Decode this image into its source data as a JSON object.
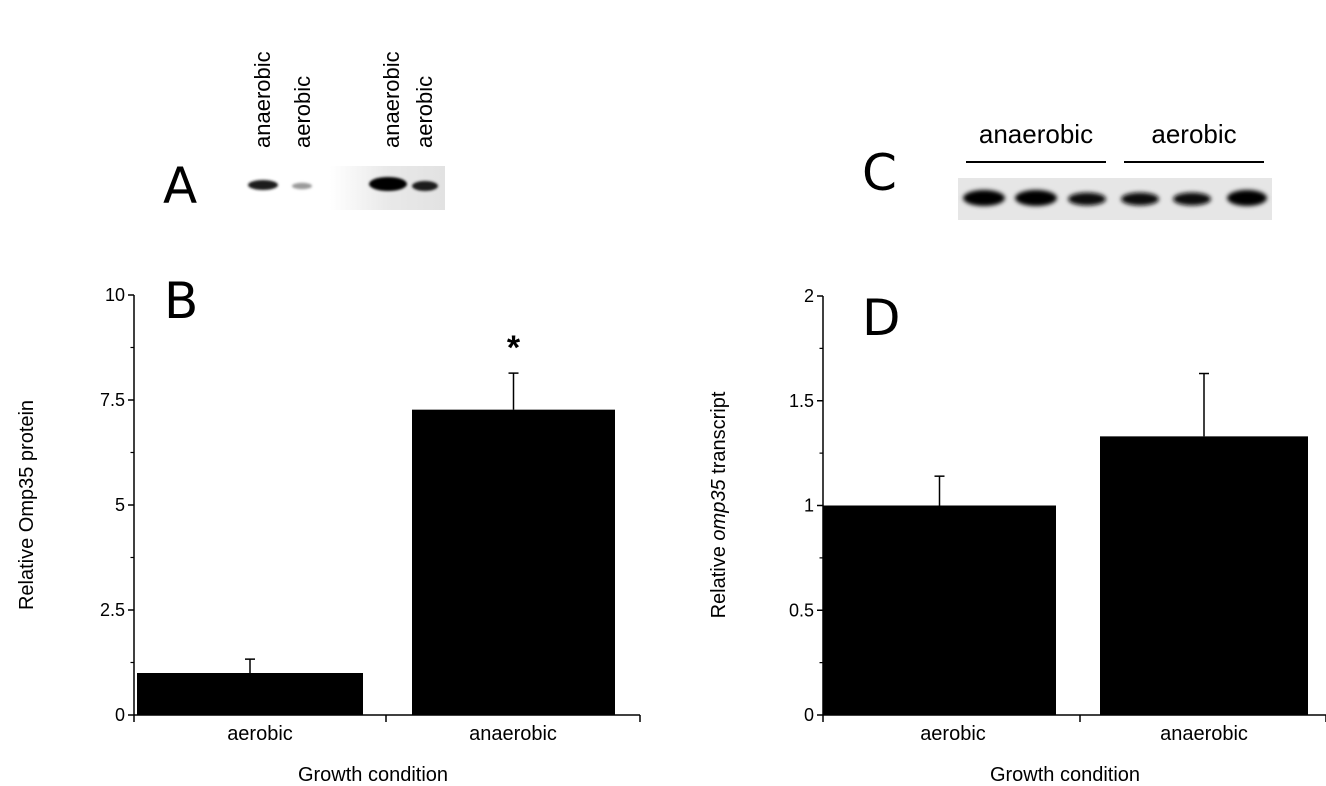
{
  "panel_letters": {
    "a": "A",
    "b": "B",
    "c": "C",
    "d": "D"
  },
  "blot_a": {
    "lane_labels": [
      "anaerobic",
      "aerobic",
      "anaerobic",
      "aerobic"
    ]
  },
  "blot_c": {
    "group_labels": [
      "anaerobic",
      "aerobic"
    ]
  },
  "chart_data": [
    {
      "panel": "B",
      "type": "bar",
      "categories": [
        "aerobic",
        "anaerobic"
      ],
      "values": [
        1.0,
        7.27
      ],
      "error_bars": [
        0.33,
        0.87
      ],
      "xlabel": "Growth condition",
      "ylabel": "Relative Omp35 protein",
      "ylim": [
        0,
        10
      ],
      "yticks": [
        "0",
        "2.5",
        "5",
        "7.5",
        "10"
      ],
      "ytick_values": [
        0,
        2.5,
        5,
        7.5,
        10
      ],
      "annotation": "*",
      "bar_color": "#000000",
      "grid": false
    },
    {
      "panel": "D",
      "type": "bar",
      "categories": [
        "aerobic",
        "anaerobic"
      ],
      "values": [
        1.0,
        1.33
      ],
      "error_bars": [
        0.14,
        0.3
      ],
      "xlabel": "Growth condition",
      "ylabel_parts": [
        "Relative ",
        "omp35",
        " transcript"
      ],
      "ylim": [
        0,
        2
      ],
      "yticks": [
        "0",
        "0.5",
        "1",
        "1.5",
        "2"
      ],
      "ytick_values": [
        0,
        0.5,
        1,
        1.5,
        2
      ],
      "bar_color": "#000000",
      "grid": false
    }
  ]
}
